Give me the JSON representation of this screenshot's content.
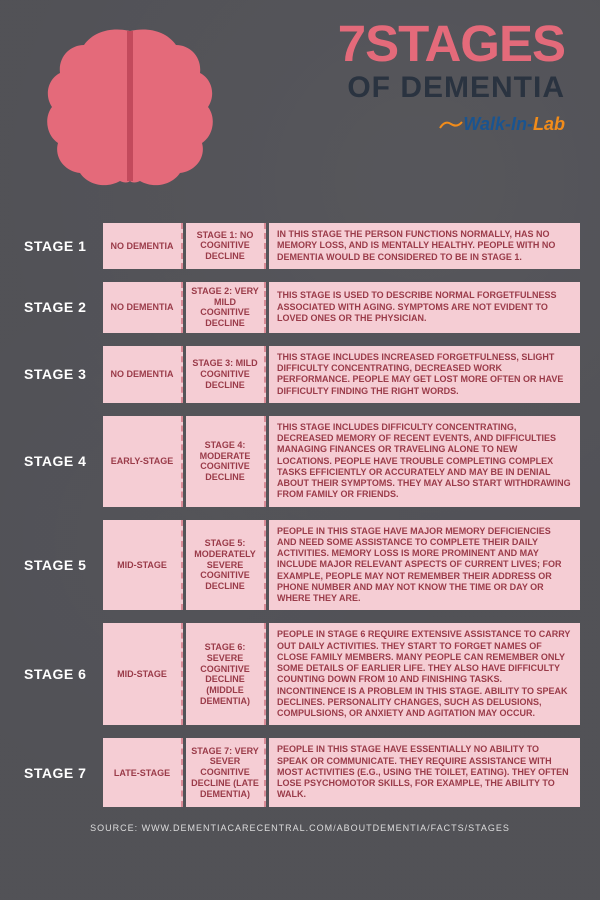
{
  "title": {
    "main": "7STAGES",
    "sub": "OF DEMENTIA",
    "logo_parts": {
      "walk": "Walk",
      "in": "-In-",
      "lab": "Lab"
    }
  },
  "colors": {
    "accent": "#e46a7a",
    "dark": "#2a3340",
    "row_bg": "#f5cdd4",
    "row_text": "#9a3b49",
    "row_dash": "#d98a96"
  },
  "brain": {
    "fill": "#e46a7a",
    "divider": "#c24a5c"
  },
  "stages": [
    {
      "label": "STAGE 1",
      "category": "No Dementia",
      "name": "Stage 1: No Cognitive Decline",
      "description": "In this stage the person functions normally, has no memory loss, and is mentally healthy. People with no dementia would be considered to be in Stage 1.",
      "min_h": 40
    },
    {
      "label": "STAGE 2",
      "category": "No Dementia",
      "name": "Stage 2: Very Mild Cognitive Decline",
      "description": "This stage is used to describe normal forgetfulness associated with aging. Symptoms are not evident to loved ones or the physician.",
      "min_h": 40
    },
    {
      "label": "STAGE 3",
      "category": "No Dementia",
      "name": "Stage 3: Mild Cognitive Decline",
      "description": "This stage includes increased forgetfulness, slight difficulty concentrating, decreased work performance. People may get lost more often or have difficulty finding the right words.",
      "min_h": 52
    },
    {
      "label": "STAGE 4",
      "category": "Early-Stage",
      "name": "Stage 4: Moderate Cognitive Decline",
      "description": "This stage includes difficulty concentrating, decreased memory of recent events, and difficulties managing finances or traveling alone to new locations. People have trouble completing complex tasks efficiently or accurately and may be in denial about their symptoms. They may also start withdrawing from family or friends.",
      "min_h": 82
    },
    {
      "label": "STAGE 5",
      "category": "Mid-Stage",
      "name": "Stage 5: Moderately Severe Cognitive Decline",
      "description": "People in this stage have major memory deficiencies and need some assistance to complete their daily activities. Memory loss is more prominent and may include major relevant aspects of current lives; for example, people may not remember their address or phone number and may not know the time or day or where they are.",
      "min_h": 88
    },
    {
      "label": "STAGE 6",
      "category": "Mid-Stage",
      "name": "Stage 6: Severe Cognitive Decline (Middle Dementia)",
      "description": "People in Stage 6 require extensive assistance to carry out daily activities. They start to forget names of close family members. Many people can remember only some details of earlier life. They also have difficulty counting down from 10 and finishing tasks. Incontinence is a problem in this stage. Ability to speak declines. Personality changes, such as delusions, compulsions, or anxiety and agitation may occur.",
      "min_h": 102
    },
    {
      "label": "STAGE 7",
      "category": "Late-Stage",
      "name": "Stage 7: Very Sever Cognitive Decline (Late Dementia)",
      "description": "People in this stage have essentially no ability to speak or communicate. They require assistance with most activities (e.g., using the toilet, eating). They often lose psychomotor skills, for example, the ability to walk.",
      "min_h": 64
    }
  ],
  "stage_gap": 13,
  "source": "Source: www.dementiacarecentral.com/aboutdementia/facts/stages"
}
